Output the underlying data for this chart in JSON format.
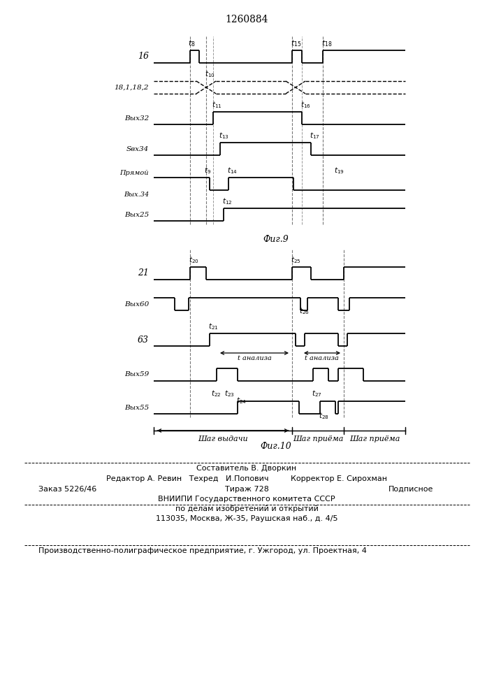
{
  "title": "1260884",
  "fig9_label": "Фиг.9",
  "fig10_label": "Фиг.10",
  "background_color": "#ffffff",
  "line_color": "#000000",
  "footer": {
    "line1": "Составитель В. Дворкин",
    "line2": "Редактор А. Ревин   Техред   И.Попович         Корректор Е. Сирохман",
    "line3a": "Заказ 5226/46",
    "line3b": "Тираж 728",
    "line3c": "Подписное",
    "line4": "ВНИИПИ Государственного комитета СССР",
    "line5": "по делам изобретений и открытий",
    "line6": "113035, Москва, Ж-35, Раушская наб., д. 4/5",
    "line7": "Производственно-полиграфическое предприятие, г. Ужгород, ул. Проектная, 4"
  }
}
